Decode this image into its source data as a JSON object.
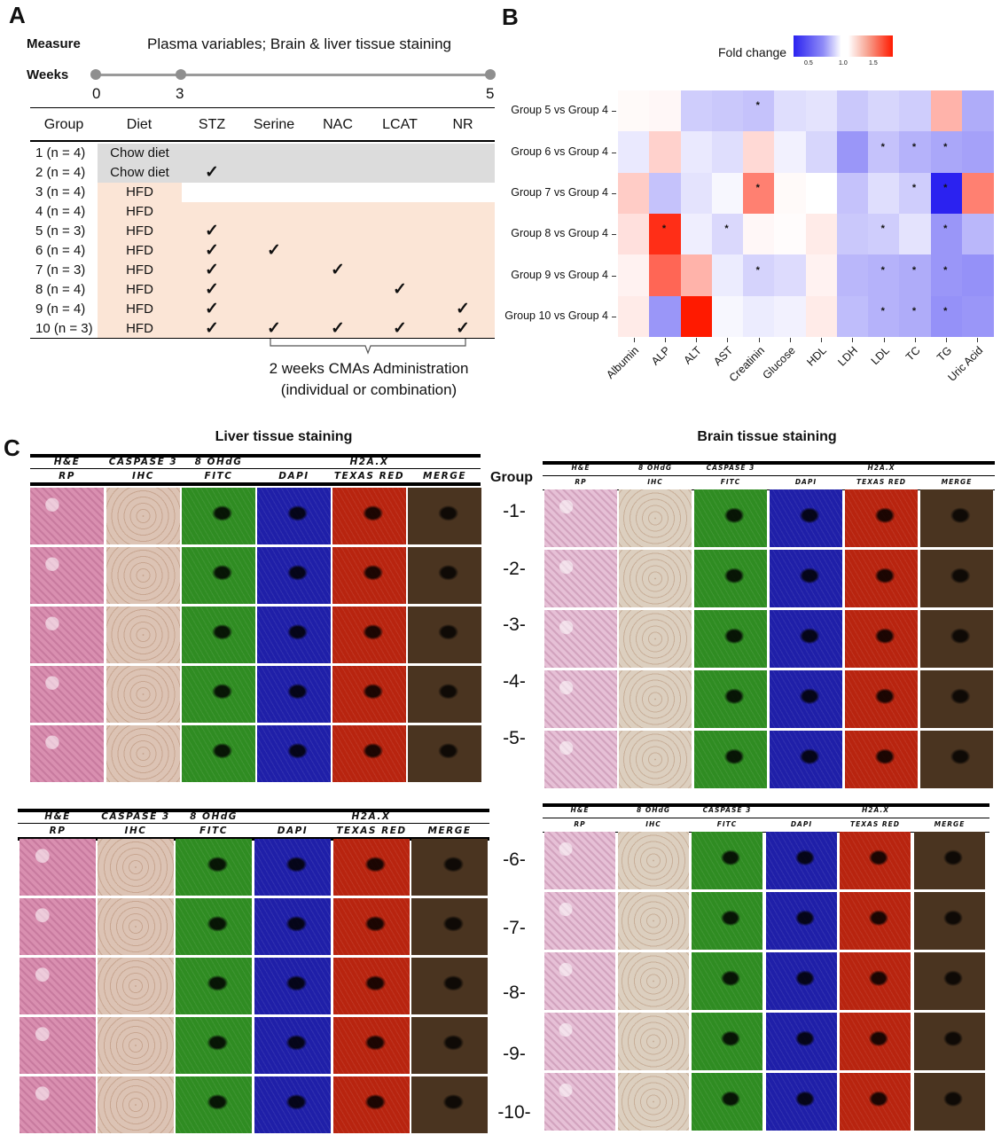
{
  "panelA": {
    "letter": "A",
    "measure_label": "Measure",
    "measure_text": "Plasma variables; Brain & liver tissue staining",
    "weeks_label": "Weeks",
    "week_ticks": [
      "0",
      "3",
      "5"
    ],
    "columns": [
      "Group",
      "Diet",
      "STZ",
      "Serine",
      "NAC",
      "LCAT",
      "NR"
    ],
    "rows": [
      {
        "group": "1 (n = 4)",
        "diet": "Chow diet",
        "checks": [
          false,
          false,
          false,
          false,
          false
        ]
      },
      {
        "group": "2 (n = 4)",
        "diet": "Chow diet",
        "checks": [
          true,
          false,
          false,
          false,
          false
        ]
      },
      {
        "group": "3 (n = 4)",
        "diet": "HFD",
        "checks": [
          false,
          false,
          false,
          false,
          false
        ]
      },
      {
        "group": "4 (n = 4)",
        "diet": "HFD",
        "checks": [
          false,
          false,
          false,
          false,
          false
        ]
      },
      {
        "group": "5 (n = 3)",
        "diet": "HFD",
        "checks": [
          true,
          false,
          false,
          false,
          false
        ]
      },
      {
        "group": "6 (n = 4)",
        "diet": "HFD",
        "checks": [
          true,
          true,
          false,
          false,
          false
        ]
      },
      {
        "group": "7 (n = 3)",
        "diet": "HFD",
        "checks": [
          true,
          false,
          true,
          false,
          false
        ]
      },
      {
        "group": "8 (n = 4)",
        "diet": "HFD",
        "checks": [
          true,
          false,
          false,
          true,
          false
        ]
      },
      {
        "group": "9 (n = 4)",
        "diet": "HFD",
        "checks": [
          true,
          false,
          false,
          false,
          true
        ]
      },
      {
        "group": "10 (n = 3)",
        "diet": "HFD",
        "checks": [
          true,
          true,
          true,
          true,
          true
        ]
      }
    ],
    "check_glyph": "✓",
    "bracket_line1": "2 weeks CMAs Administration",
    "bracket_line2": "(individual or combination)",
    "colors": {
      "chow_bg": "#dcdcdc",
      "hfd_bg": "#fbe5d6"
    }
  },
  "panelB": {
    "letter": "B",
    "legend_title": "Fold change",
    "legend_ticks": [
      "0.5",
      "1.0",
      "1.5"
    ],
    "chart_data": {
      "type": "heatmap",
      "rows": [
        "Group 5 vs Group 4",
        "Group 6 vs Group 4",
        "Group 7 vs Group 4",
        "Group 8 vs Group 4",
        "Group 9 vs Group 4",
        "Group 10 vs Group 4"
      ],
      "columns": [
        "Albumin",
        "ALP",
        "ALT",
        "AST",
        "Creatinin",
        "Glucose",
        "HDL",
        "LDH",
        "LDL",
        "TC",
        "TG",
        "Uric Acid"
      ],
      "values": [
        [
          1.02,
          1.03,
          0.82,
          0.8,
          0.78,
          0.88,
          0.9,
          0.8,
          0.85,
          0.82,
          1.3,
          0.7
        ],
        [
          0.92,
          1.18,
          0.92,
          0.88,
          1.15,
          0.95,
          0.85,
          0.62,
          0.78,
          0.72,
          0.68,
          0.66
        ],
        [
          1.2,
          0.78,
          0.9,
          0.97,
          1.5,
          1.02,
          1.0,
          0.78,
          0.88,
          0.82,
          0.18,
          1.5
        ],
        [
          1.12,
          1.82,
          0.94,
          0.86,
          1.03,
          1.01,
          1.08,
          0.8,
          0.82,
          0.9,
          0.62,
          0.74
        ],
        [
          1.05,
          1.6,
          1.3,
          0.93,
          0.84,
          0.87,
          1.05,
          0.74,
          0.72,
          0.7,
          0.62,
          0.6
        ],
        [
          1.08,
          0.62,
          1.95,
          0.97,
          0.93,
          0.95,
          1.08,
          0.76,
          0.72,
          0.7,
          0.6,
          0.62
        ]
      ],
      "significance": [
        [
          false,
          false,
          false,
          false,
          true,
          false,
          false,
          false,
          false,
          false,
          false,
          false
        ],
        [
          false,
          false,
          false,
          false,
          false,
          false,
          false,
          false,
          true,
          true,
          true,
          false
        ],
        [
          false,
          false,
          false,
          false,
          true,
          false,
          false,
          false,
          false,
          true,
          true,
          false
        ],
        [
          false,
          true,
          false,
          true,
          false,
          false,
          false,
          false,
          true,
          false,
          true,
          false
        ],
        [
          false,
          false,
          false,
          false,
          true,
          false,
          false,
          false,
          true,
          true,
          true,
          false
        ],
        [
          false,
          false,
          false,
          false,
          false,
          false,
          false,
          false,
          true,
          true,
          true,
          false
        ]
      ],
      "significance_marker": "*",
      "color_scale": {
        "low": "#2b22f0",
        "mid": "#ffffff",
        "high": "#ff1a00",
        "min": 0.2,
        "mid_value": 1.0,
        "max": 1.9
      }
    }
  },
  "panelC": {
    "letter": "C",
    "liver_title": "Liver tissue staining",
    "brain_title": "Brain tissue staining",
    "group_label": "Group",
    "liver_header": {
      "top": [
        "H&E",
        "CASPASE 3",
        "8 OHdG",
        "H2A.X"
      ],
      "bottom": [
        "RP",
        "IHC",
        "FITC",
        "DAPI",
        "TEXAS RED",
        "MERGE"
      ]
    },
    "brain_header": {
      "top": [
        "H&E",
        "8 OHdG",
        "CASPASE 3",
        "H2A.X"
      ],
      "bottom": [
        "RP",
        "IHC",
        "FITC",
        "DAPI",
        "TEXAS RED",
        "MERGE"
      ]
    },
    "group_labels_top": [
      "-1-",
      "-2-",
      "-3-",
      "-4-",
      "-5-"
    ],
    "group_labels_bottom": [
      "-6-",
      "-7-",
      "-8-",
      "-9-",
      "-10-"
    ],
    "tile_colors": {
      "he": "#d98fb0",
      "ihc_liver": "#dcc3b4",
      "fitc": "#2f8c22",
      "dapi": "#1f1fa8",
      "texas": "#b8240f",
      "merge": "#4a3420",
      "he_brain": "#e6c0d6",
      "ihc_brain": "#dccfbf"
    }
  }
}
